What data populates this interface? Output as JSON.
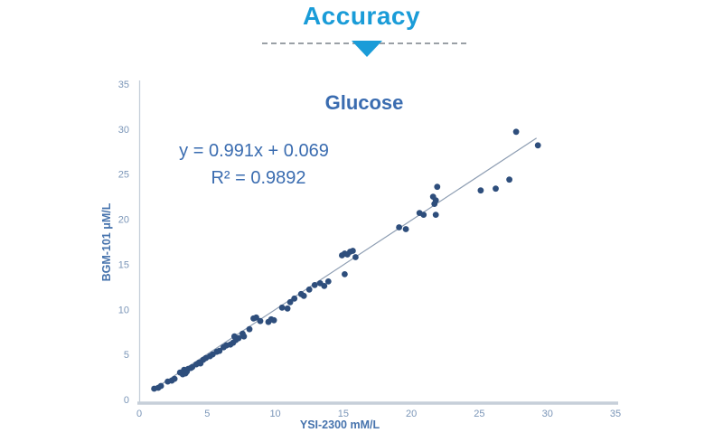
{
  "header": {
    "title": "Accuracy"
  },
  "colors": {
    "accent": "#1a9cd8",
    "chart_text": "#3a6cb0",
    "axis_title": "#4673ad",
    "tick_label": "#7b96b8",
    "point": "#2e4e7c",
    "trendline": "#8d9db2",
    "axis_line": "#c6cfd9",
    "divider_dash": "#9aa0a6"
  },
  "chart_data": {
    "type": "scatter",
    "title": "Glucose",
    "xlabel": "YSI-2300 mM/L",
    "ylabel": "BGM-101 μM/L",
    "xlim": [
      0,
      35
    ],
    "ylim": [
      0,
      35
    ],
    "x_ticks": [
      0,
      5,
      10,
      15,
      20,
      25,
      30,
      35
    ],
    "y_ticks": [
      0,
      5,
      10,
      15,
      20,
      25,
      30,
      35
    ],
    "grid": false,
    "annotations": {
      "equation": "y = 0.991x + 0.069",
      "r2": "R² = 0.9892"
    },
    "trendline": {
      "slope": 0.991,
      "intercept": 0.069,
      "r_squared": 0.9892,
      "x_start": 1.0,
      "x_end": 29.2
    },
    "points": [
      [
        1.1,
        1.2
      ],
      [
        1.4,
        1.3
      ],
      [
        1.6,
        1.5
      ],
      [
        2.1,
        2.0
      ],
      [
        2.4,
        2.1
      ],
      [
        2.6,
        2.3
      ],
      [
        3.0,
        3.0
      ],
      [
        3.2,
        2.8
      ],
      [
        3.3,
        3.3
      ],
      [
        3.4,
        2.9
      ],
      [
        3.5,
        3.1
      ],
      [
        3.6,
        3.4
      ],
      [
        3.8,
        3.5
      ],
      [
        3.9,
        3.6
      ],
      [
        4.2,
        3.9
      ],
      [
        4.4,
        4.1
      ],
      [
        4.5,
        4.0
      ],
      [
        4.7,
        4.4
      ],
      [
        4.9,
        4.6
      ],
      [
        5.2,
        4.8
      ],
      [
        5.4,
        5.0
      ],
      [
        5.7,
        5.3
      ],
      [
        5.9,
        5.4
      ],
      [
        6.2,
        5.8
      ],
      [
        6.4,
        6.0
      ],
      [
        6.7,
        6.1
      ],
      [
        6.9,
        6.3
      ],
      [
        7.0,
        7.0
      ],
      [
        7.1,
        6.6
      ],
      [
        7.3,
        6.8
      ],
      [
        7.6,
        7.3
      ],
      [
        7.7,
        7.0
      ],
      [
        8.1,
        7.8
      ],
      [
        8.4,
        9.0
      ],
      [
        8.6,
        9.1
      ],
      [
        8.9,
        8.7
      ],
      [
        9.5,
        8.6
      ],
      [
        9.7,
        8.9
      ],
      [
        9.9,
        8.8
      ],
      [
        10.5,
        10.2
      ],
      [
        10.9,
        10.1
      ],
      [
        11.1,
        10.8
      ],
      [
        11.4,
        11.2
      ],
      [
        11.9,
        11.7
      ],
      [
        12.1,
        11.5
      ],
      [
        12.5,
        12.2
      ],
      [
        12.9,
        12.7
      ],
      [
        13.3,
        12.9
      ],
      [
        13.6,
        12.6
      ],
      [
        13.9,
        13.1
      ],
      [
        14.9,
        16.0
      ],
      [
        15.1,
        16.2
      ],
      [
        15.3,
        16.1
      ],
      [
        15.5,
        16.4
      ],
      [
        15.7,
        16.5
      ],
      [
        15.9,
        15.8
      ],
      [
        15.1,
        13.9
      ],
      [
        19.1,
        19.1
      ],
      [
        19.6,
        18.9
      ],
      [
        20.6,
        20.7
      ],
      [
        20.9,
        20.5
      ],
      [
        21.6,
        22.5
      ],
      [
        21.8,
        22.1
      ],
      [
        21.9,
        23.6
      ],
      [
        21.7,
        21.7
      ],
      [
        21.8,
        20.5
      ],
      [
        25.1,
        23.2
      ],
      [
        26.2,
        23.4
      ],
      [
        27.2,
        24.4
      ],
      [
        27.7,
        29.7
      ],
      [
        29.3,
        28.2
      ]
    ]
  }
}
